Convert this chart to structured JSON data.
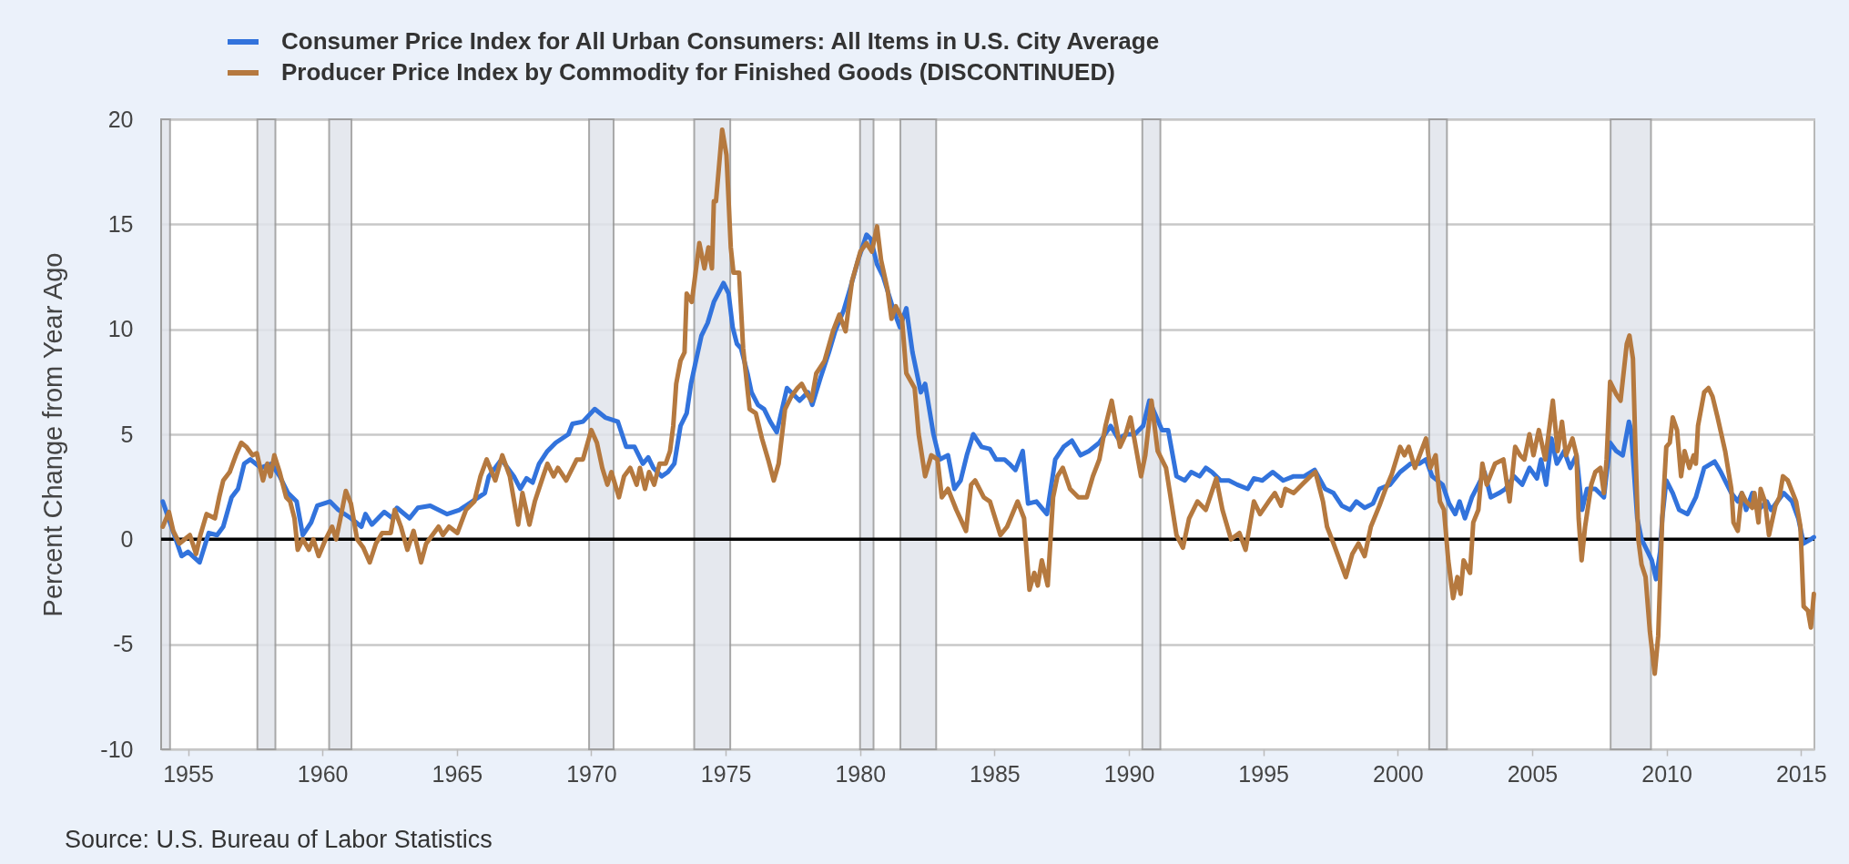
{
  "chart_data": {
    "type": "line",
    "ylabel": "Percent Change from Year Ago",
    "xlim": [
      1954.0,
      2015.5
    ],
    "xticks": [
      1955,
      1960,
      1965,
      1970,
      1975,
      1980,
      1985,
      1990,
      1995,
      2000,
      2005,
      2010,
      2015
    ],
    "ylim": [
      -10,
      20
    ],
    "yticks": [
      -10,
      -5,
      0,
      5,
      10,
      15,
      20
    ],
    "grid": "y",
    "legend": "top left",
    "annotations": [
      "Source: U.S. Bureau of Labor Statistics"
    ],
    "ref_lines": [
      {
        "axis": "y",
        "value": 0,
        "color": "#000000"
      }
    ],
    "bands": [
      {
        "axis": "x",
        "from": 1954.0,
        "to": 1954.33,
        "color": "#e1e5ec"
      },
      {
        "axis": "x",
        "from": 1957.58,
        "to": 1958.25,
        "color": "#e1e5ec"
      },
      {
        "axis": "x",
        "from": 1960.25,
        "to": 1961.08,
        "color": "#e1e5ec"
      },
      {
        "axis": "x",
        "from": 1969.92,
        "to": 1970.83,
        "color": "#e1e5ec"
      },
      {
        "axis": "x",
        "from": 1973.83,
        "to": 1975.17,
        "color": "#e1e5ec"
      },
      {
        "axis": "x",
        "from": 1980.0,
        "to": 1980.5,
        "color": "#e1e5ec"
      },
      {
        "axis": "x",
        "from": 1981.5,
        "to": 1982.83,
        "color": "#e1e5ec"
      },
      {
        "axis": "x",
        "from": 1990.5,
        "to": 1991.17,
        "color": "#e1e5ec"
      },
      {
        "axis": "x",
        "from": 2001.17,
        "to": 2001.83,
        "color": "#e1e5ec"
      },
      {
        "axis": "x",
        "from": 2007.92,
        "to": 2009.42,
        "color": "#e1e5ec"
      }
    ],
    "series": [
      {
        "name": "Consumer Price Index for All Urban Consumers: All Items in U.S. City Average",
        "color": "#3273dc",
        "x": [
          1954.06,
          1954.76,
          1955.0,
          1955.43,
          1955.77,
          1956.08,
          1956.31,
          1956.62,
          1956.86,
          1957.09,
          1957.32,
          1957.71,
          1958.1,
          1958.41,
          1958.72,
          1959.04,
          1959.27,
          1959.58,
          1959.81,
          1960.28,
          1960.59,
          1961.06,
          1961.45,
          1961.6,
          1961.84,
          1962.3,
          1962.61,
          1962.77,
          1963.24,
          1963.55,
          1964.01,
          1964.64,
          1965.1,
          1965.57,
          1966.04,
          1966.19,
          1966.66,
          1967.12,
          1967.36,
          1967.59,
          1967.82,
          1968.06,
          1968.37,
          1968.68,
          1969.15,
          1969.3,
          1969.69,
          1970.13,
          1970.52,
          1970.99,
          1971.3,
          1971.61,
          1971.92,
          1972.12,
          1972.31,
          1972.62,
          1972.85,
          1973.09,
          1973.32,
          1973.55,
          1973.71,
          1973.86,
          1974.1,
          1974.33,
          1974.56,
          1974.8,
          1974.92,
          1975.11,
          1975.26,
          1975.42,
          1975.57,
          1975.81,
          1975.96,
          1976.2,
          1976.43,
          1976.66,
          1976.9,
          1977.28,
          1977.75,
          1978.06,
          1978.22,
          1978.53,
          1978.84,
          1979.07,
          1979.39,
          1979.62,
          1979.93,
          1980.24,
          1980.4,
          1980.63,
          1980.86,
          1981.25,
          1981.48,
          1981.72,
          1981.95,
          1982.26,
          1982.42,
          1982.73,
          1982.96,
          1983.27,
          1983.51,
          1983.74,
          1983.97,
          1984.21,
          1984.52,
          1984.83,
          1985.06,
          1985.37,
          1985.55,
          1985.78,
          1986.05,
          1986.25,
          1986.56,
          1986.95,
          1987.26,
          1987.57,
          1987.88,
          1988.2,
          1988.51,
          1988.9,
          1989.32,
          1989.6,
          1989.91,
          1990.22,
          1990.53,
          1990.76,
          1991.23,
          1991.46,
          1991.77,
          1992.08,
          1992.32,
          1992.63,
          1992.86,
          1993.09,
          1993.41,
          1993.72,
          1994.03,
          1994.42,
          1994.65,
          1994.96,
          1995.35,
          1995.74,
          1996.13,
          1996.52,
          1996.91,
          1997.3,
          1997.61,
          1997.92,
          1998.23,
          1998.46,
          1998.77,
          1999.08,
          1999.32,
          1999.71,
          2000.09,
          2000.48,
          2000.8,
          2001.05,
          2001.28,
          2001.67,
          2001.91,
          2002.14,
          2002.3,
          2002.5,
          2002.76,
          2003.0,
          2003.23,
          2003.46,
          2003.77,
          2004.01,
          2004.32,
          2004.63,
          2004.9,
          2005.18,
          2005.33,
          2005.52,
          2005.72,
          2005.92,
          2006.19,
          2006.42,
          2006.65,
          2006.86,
          2007.04,
          2007.35,
          2007.67,
          2007.9,
          2008.13,
          2008.37,
          2008.6,
          2008.68,
          2008.91,
          2009.07,
          2009.3,
          2009.45,
          2009.61,
          2009.76,
          2009.84,
          2009.99,
          2010.23,
          2010.47,
          2010.78,
          2011.09,
          2011.4,
          2011.79,
          2012.02,
          2012.41,
          2012.65,
          2012.8,
          2012.96,
          2013.19,
          2013.42,
          2013.73,
          2013.89,
          2014.36,
          2014.67,
          2014.9,
          2015.1,
          2015.37,
          2015.48
        ],
        "values": [
          1.8,
          -0.8,
          -0.6,
          -1.1,
          0.3,
          0.2,
          0.6,
          2.0,
          2.4,
          3.6,
          3.8,
          3.4,
          3.6,
          3.0,
          2.2,
          1.8,
          0.2,
          0.8,
          1.6,
          1.8,
          1.4,
          1.0,
          0.6,
          1.2,
          0.7,
          1.3,
          1.0,
          1.5,
          1.0,
          1.5,
          1.6,
          1.2,
          1.4,
          1.8,
          2.2,
          3.0,
          3.8,
          3.0,
          2.4,
          2.9,
          2.7,
          3.6,
          4.2,
          4.6,
          5.0,
          5.5,
          5.6,
          6.2,
          5.8,
          5.6,
          4.4,
          4.4,
          3.6,
          3.9,
          3.4,
          3.0,
          3.2,
          3.6,
          5.4,
          6.0,
          7.4,
          8.3,
          9.7,
          10.3,
          11.3,
          11.9,
          12.2,
          11.7,
          10.1,
          9.3,
          9.1,
          7.9,
          7.0,
          6.4,
          6.2,
          5.6,
          5.1,
          7.2,
          6.6,
          7.0,
          6.4,
          7.7,
          8.9,
          9.9,
          10.9,
          11.9,
          13.3,
          14.5,
          14.3,
          13.1,
          12.5,
          10.9,
          10.1,
          11.0,
          8.9,
          7.0,
          7.4,
          5.0,
          3.8,
          4.0,
          2.4,
          2.8,
          4.0,
          5.0,
          4.4,
          4.3,
          3.8,
          3.8,
          3.6,
          3.3,
          4.2,
          1.7,
          1.8,
          1.2,
          3.8,
          4.4,
          4.7,
          4.0,
          4.2,
          4.6,
          5.4,
          4.8,
          5.0,
          5.0,
          5.4,
          6.6,
          5.2,
          5.2,
          3.0,
          2.8,
          3.2,
          3.0,
          3.4,
          3.2,
          2.8,
          2.8,
          2.6,
          2.4,
          2.9,
          2.8,
          3.2,
          2.8,
          3.0,
          3.0,
          3.3,
          2.4,
          2.2,
          1.6,
          1.4,
          1.8,
          1.5,
          1.7,
          2.4,
          2.6,
          3.2,
          3.6,
          3.6,
          3.8,
          3.0,
          2.6,
          1.7,
          1.2,
          1.8,
          1.0,
          2.0,
          2.6,
          3.2,
          2.0,
          2.2,
          2.4,
          3.0,
          2.6,
          3.4,
          2.9,
          3.8,
          2.6,
          4.8,
          3.6,
          4.2,
          3.4,
          4.0,
          1.4,
          2.4,
          2.4,
          2.0,
          4.6,
          4.2,
          4.0,
          5.6,
          5.2,
          1.0,
          0.0,
          -0.6,
          -1.0,
          -1.9,
          -0.6,
          1.0,
          2.8,
          2.2,
          1.4,
          1.2,
          2.0,
          3.4,
          3.7,
          3.2,
          2.2,
          1.8,
          2.2,
          1.4,
          2.2,
          1.4,
          1.8,
          1.4,
          2.2,
          1.8,
          1.0,
          -0.2,
          0.0,
          0.1
        ]
      },
      {
        "name": "Producer Price Index by Commodity for Finished Goods (DISCONTINUED)",
        "color": "#b5793f",
        "x": [
          1954.06,
          1954.29,
          1954.45,
          1954.68,
          1955.07,
          1955.3,
          1955.46,
          1955.69,
          1956.0,
          1956.16,
          1956.31,
          1956.55,
          1956.78,
          1956.98,
          1957.17,
          1957.4,
          1957.56,
          1957.79,
          1957.95,
          1958.07,
          1958.21,
          1958.41,
          1958.65,
          1958.8,
          1958.96,
          1959.08,
          1959.27,
          1959.5,
          1959.66,
          1959.86,
          1960.12,
          1960.36,
          1960.51,
          1960.67,
          1960.87,
          1961.06,
          1961.29,
          1961.52,
          1961.76,
          1961.99,
          1962.22,
          1962.54,
          1962.69,
          1962.92,
          1963.16,
          1963.39,
          1963.67,
          1963.86,
          1964.09,
          1964.32,
          1964.48,
          1964.71,
          1965.02,
          1965.34,
          1965.65,
          1965.88,
          1966.11,
          1966.43,
          1966.69,
          1966.97,
          1967.28,
          1967.44,
          1967.7,
          1967.9,
          1968.21,
          1968.37,
          1968.6,
          1968.76,
          1969.07,
          1969.46,
          1969.69,
          1970.0,
          1970.21,
          1970.41,
          1970.6,
          1970.75,
          1971.03,
          1971.22,
          1971.45,
          1971.69,
          1971.81,
          1972.0,
          1972.15,
          1972.34,
          1972.54,
          1972.77,
          1972.93,
          1973.05,
          1973.16,
          1973.32,
          1973.47,
          1973.55,
          1973.74,
          1974.02,
          1974.21,
          1974.36,
          1974.49,
          1974.56,
          1974.64,
          1974.87,
          1975.03,
          1975.19,
          1975.29,
          1975.5,
          1975.65,
          1975.89,
          1976.12,
          1976.35,
          1976.58,
          1976.79,
          1976.97,
          1977.21,
          1977.44,
          1977.67,
          1977.83,
          1977.99,
          1978.19,
          1978.37,
          1978.68,
          1978.99,
          1979.23,
          1979.46,
          1979.7,
          1980.01,
          1980.24,
          1980.44,
          1980.63,
          1980.78,
          1981.02,
          1981.17,
          1981.33,
          1981.56,
          1981.72,
          1982.03,
          1982.18,
          1982.42,
          1982.65,
          1982.88,
          1983.04,
          1983.27,
          1983.58,
          1983.94,
          1984.13,
          1984.28,
          1984.6,
          1984.83,
          1985.22,
          1985.47,
          1985.86,
          1986.1,
          1986.3,
          1986.48,
          1986.61,
          1986.76,
          1986.98,
          1987.18,
          1987.34,
          1987.54,
          1987.81,
          1988.12,
          1988.43,
          1988.66,
          1988.9,
          1989.13,
          1989.36,
          1989.67,
          1989.88,
          1990.06,
          1990.45,
          1990.61,
          1990.84,
          1991.07,
          1991.38,
          1991.77,
          1992.01,
          1992.24,
          1992.55,
          1992.86,
          1993.25,
          1993.48,
          1993.8,
          1994.11,
          1994.34,
          1994.65,
          1994.88,
          1995.2,
          1995.43,
          1995.66,
          1995.82,
          1996.13,
          1996.44,
          1996.75,
          1996.94,
          1997.22,
          1997.37,
          1997.61,
          1998.07,
          1998.31,
          1998.54,
          1998.77,
          1999.0,
          1999.32,
          1999.55,
          1999.78,
          2000.09,
          2000.25,
          2000.41,
          2000.64,
          2001.05,
          2001.21,
          2001.41,
          2001.57,
          2001.72,
          2001.88,
          2002.06,
          2002.22,
          2002.34,
          2002.45,
          2002.69,
          2002.81,
          2003.0,
          2003.15,
          2003.31,
          2003.62,
          2003.93,
          2004.16,
          2004.37,
          2004.55,
          2004.71,
          2004.9,
          2005.05,
          2005.25,
          2005.49,
          2005.77,
          2005.95,
          2006.11,
          2006.26,
          2006.5,
          2006.65,
          2006.73,
          2006.84,
          2006.97,
          2007.2,
          2007.35,
          2007.54,
          2007.67,
          2007.77,
          2007.9,
          2008.13,
          2008.29,
          2008.52,
          2008.62,
          2008.75,
          2008.85,
          2008.95,
          2009.07,
          2009.22,
          2009.38,
          2009.56,
          2009.69,
          2009.84,
          2009.99,
          2010.12,
          2010.23,
          2010.39,
          2010.54,
          2010.67,
          2010.85,
          2011.01,
          2011.09,
          2011.17,
          2011.4,
          2011.56,
          2011.71,
          2011.9,
          2012.18,
          2012.41,
          2012.49,
          2012.65,
          2012.8,
          2012.96,
          2013.19,
          2013.27,
          2013.42,
          2013.5,
          2013.66,
          2013.81,
          2014.05,
          2014.2,
          2014.33,
          2014.51,
          2014.82,
          2014.98,
          2015.1,
          2015.26,
          2015.37,
          2015.48
        ],
        "values": [
          0.6,
          1.3,
          0.4,
          -0.2,
          0.2,
          -0.7,
          0.2,
          1.2,
          1.0,
          2.0,
          2.8,
          3.2,
          4.0,
          4.6,
          4.4,
          4.0,
          4.1,
          2.8,
          3.6,
          3.0,
          4.0,
          3.2,
          2.0,
          1.8,
          1.0,
          -0.5,
          0.0,
          -0.5,
          0.0,
          -0.8,
          0.0,
          0.6,
          0.0,
          1.0,
          2.3,
          1.7,
          0.0,
          -0.4,
          -1.1,
          -0.2,
          0.3,
          0.3,
          1.4,
          0.6,
          -0.5,
          0.4,
          -1.1,
          -0.2,
          0.2,
          0.6,
          0.2,
          0.6,
          0.3,
          1.4,
          1.8,
          3.0,
          3.8,
          2.8,
          4.0,
          3.0,
          0.7,
          2.2,
          0.7,
          1.8,
          3.0,
          3.6,
          3.0,
          3.4,
          2.8,
          3.8,
          3.8,
          5.2,
          4.6,
          3.4,
          2.6,
          3.2,
          2.0,
          3.0,
          3.4,
          2.6,
          3.4,
          2.4,
          3.2,
          2.6,
          3.6,
          3.6,
          4.2,
          5.4,
          7.4,
          8.5,
          8.9,
          11.7,
          11.3,
          14.1,
          12.9,
          13.9,
          12.9,
          16.1,
          16.1,
          19.5,
          18.3,
          13.9,
          12.7,
          12.7,
          9.1,
          6.2,
          6.0,
          4.8,
          3.8,
          2.8,
          3.6,
          6.2,
          6.8,
          7.2,
          7.4,
          7.0,
          6.6,
          7.9,
          8.5,
          9.9,
          10.7,
          9.9,
          12.3,
          13.7,
          14.1,
          13.7,
          14.9,
          13.3,
          11.9,
          10.5,
          11.1,
          10.5,
          7.9,
          7.2,
          5.0,
          3.0,
          4.0,
          3.8,
          2.0,
          2.4,
          1.4,
          0.4,
          2.6,
          2.8,
          2.0,
          1.8,
          0.2,
          0.6,
          1.8,
          1.0,
          -2.4,
          -1.6,
          -2.2,
          -1.0,
          -2.2,
          2.0,
          3.0,
          3.4,
          2.4,
          2.0,
          2.0,
          3.0,
          3.8,
          5.4,
          6.6,
          4.4,
          5.0,
          5.8,
          3.0,
          4.0,
          6.6,
          4.2,
          3.4,
          0.2,
          -0.4,
          1.0,
          1.8,
          1.4,
          2.9,
          1.4,
          0.0,
          0.3,
          -0.5,
          1.8,
          1.2,
          1.8,
          2.2,
          1.6,
          2.4,
          2.2,
          2.6,
          3.0,
          3.2,
          1.8,
          0.6,
          -0.2,
          -1.8,
          -0.7,
          -0.2,
          -0.8,
          0.6,
          1.6,
          2.4,
          3.1,
          4.4,
          4.0,
          4.4,
          3.4,
          4.8,
          3.4,
          4.0,
          1.8,
          1.4,
          -1.0,
          -2.8,
          -1.8,
          -2.6,
          -1.0,
          -1.6,
          0.8,
          1.4,
          3.6,
          2.6,
          3.6,
          3.8,
          1.8,
          4.4,
          4.0,
          3.8,
          5.0,
          4.0,
          5.2,
          3.8,
          6.6,
          4.2,
          5.6,
          4.0,
          4.8,
          4.0,
          1.0,
          -1.0,
          0.6,
          2.6,
          3.2,
          3.4,
          2.2,
          3.8,
          7.5,
          6.9,
          6.6,
          9.3,
          9.7,
          8.6,
          4.0,
          0.0,
          -1.2,
          -1.8,
          -4.4,
          -6.4,
          -4.6,
          1.0,
          4.4,
          4.6,
          5.8,
          5.2,
          3.0,
          4.2,
          3.4,
          4.0,
          3.6,
          5.4,
          7.0,
          7.2,
          6.8,
          5.8,
          4.2,
          2.4,
          0.8,
          0.4,
          2.2,
          1.8,
          1.5,
          2.2,
          0.8,
          2.4,
          1.8,
          0.2,
          1.6,
          2.0,
          3.0,
          2.8,
          1.8,
          0.6,
          -3.2,
          -3.4,
          -4.2,
          -2.6
        ]
      }
    ]
  }
}
